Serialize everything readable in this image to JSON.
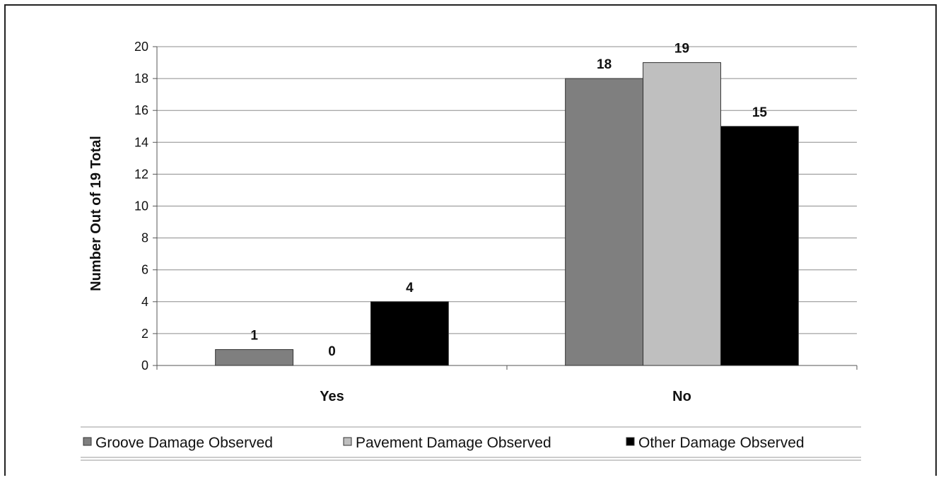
{
  "chart_data": {
    "type": "bar",
    "title": "",
    "xlabel": "",
    "ylabel": "Number Out of 19 Total",
    "categories": [
      "Yes",
      "No"
    ],
    "series": [
      {
        "name": "Groove Damage Observed",
        "values": [
          1,
          18
        ],
        "color": "#7f7f7f"
      },
      {
        "name": "Pavement Damage Observed",
        "values": [
          0,
          19
        ],
        "color": "#bfbfbf"
      },
      {
        "name": "Other Damage Observed",
        "values": [
          4,
          15
        ],
        "color": "#000000"
      }
    ],
    "ylim": [
      0,
      20
    ],
    "yticks": [
      0,
      2,
      4,
      6,
      8,
      10,
      12,
      14,
      16,
      18,
      20
    ],
    "grid": true,
    "legend": "bottom"
  }
}
